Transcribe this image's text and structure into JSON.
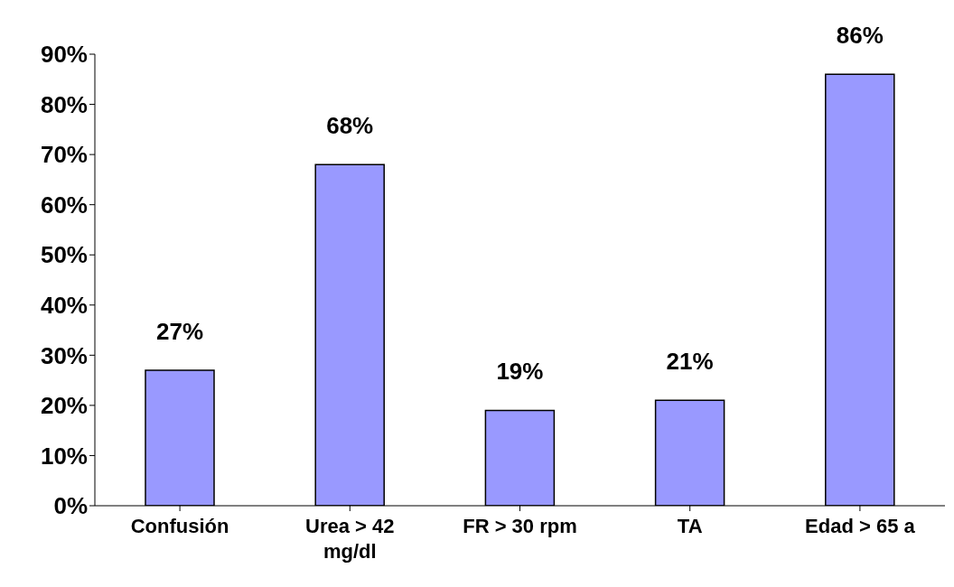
{
  "chart_data": {
    "type": "bar",
    "categories": [
      "Confusión",
      "Urea > 42 mg/dl",
      "FR > 30 rpm",
      "TA",
      "Edad > 65 a"
    ],
    "values": [
      27,
      68,
      19,
      21,
      86
    ],
    "value_labels": [
      "27%",
      "68%",
      "19%",
      "21%",
      "86%"
    ],
    "color": "#9999ff",
    "ylim": [
      0,
      90
    ],
    "yticks": [
      {
        "value": 0,
        "label": "0%"
      },
      {
        "value": 10,
        "label": "10%"
      },
      {
        "value": 20,
        "label": "20%"
      },
      {
        "value": 30,
        "label": "30%"
      },
      {
        "value": 40,
        "label": "40%"
      },
      {
        "value": 50,
        "label": "50%"
      },
      {
        "value": 60,
        "label": "60%"
      },
      {
        "value": 70,
        "label": "70%"
      },
      {
        "value": 80,
        "label": "80%"
      },
      {
        "value": 90,
        "label": "90%"
      }
    ],
    "grid": false,
    "legend": false
  }
}
